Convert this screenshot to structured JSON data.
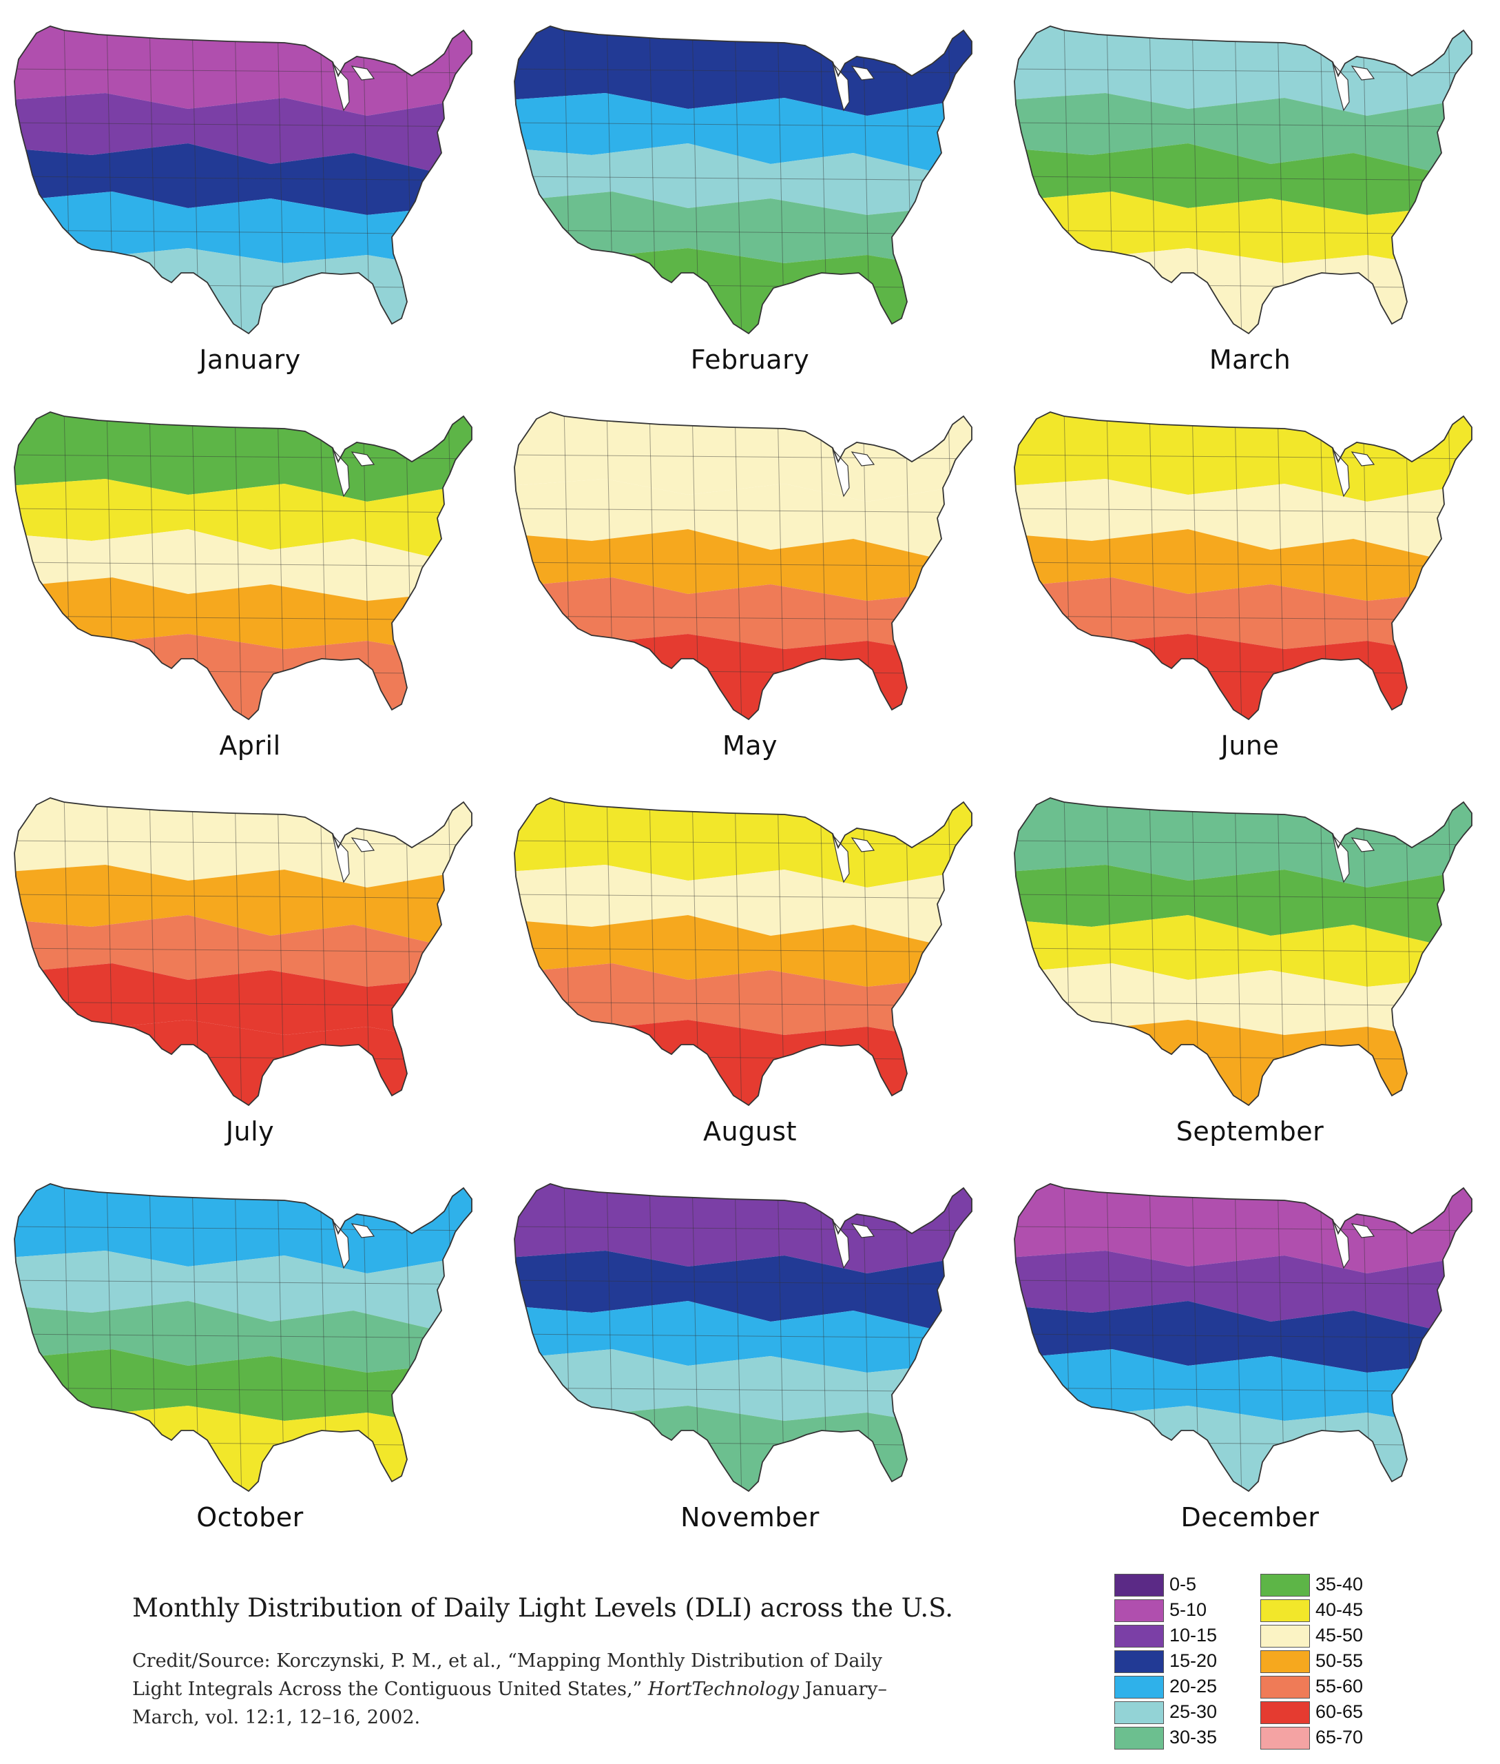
{
  "months": [
    {
      "name": "January",
      "bands": [
        1,
        2,
        3,
        4,
        5
      ]
    },
    {
      "name": "February",
      "bands": [
        3,
        4,
        5,
        6,
        7
      ]
    },
    {
      "name": "March",
      "bands": [
        5,
        6,
        7,
        8,
        9
      ]
    },
    {
      "name": "April",
      "bands": [
        7,
        8,
        9,
        10,
        11
      ]
    },
    {
      "name": "May",
      "bands": [
        9,
        9,
        10,
        11,
        12
      ]
    },
    {
      "name": "June",
      "bands": [
        8,
        9,
        10,
        11,
        12
      ]
    },
    {
      "name": "July",
      "bands": [
        9,
        10,
        11,
        12,
        12
      ]
    },
    {
      "name": "August",
      "bands": [
        8,
        9,
        10,
        11,
        12
      ]
    },
    {
      "name": "September",
      "bands": [
        6,
        7,
        8,
        9,
        10
      ]
    },
    {
      "name": "October",
      "bands": [
        4,
        5,
        6,
        7,
        8
      ]
    },
    {
      "name": "November",
      "bands": [
        2,
        3,
        4,
        5,
        6
      ]
    },
    {
      "name": "December",
      "bands": [
        1,
        2,
        3,
        4,
        5
      ]
    }
  ],
  "caption": {
    "title": "Monthly Distribution of Daily Light Levels (DLI) across the U.S.",
    "credit_prefix": "Credit/Source: Korczynski, P. M., et al., “Mapping Monthly Distribution of Daily Light Integrals Across the Contiguous United States,”",
    "credit_journal": "HortTechnology",
    "credit_suffix": "January–March, vol. 12:1, 12–16, 2002."
  },
  "legend": [
    {
      "label": "0-5",
      "color": "#5b2a86"
    },
    {
      "label": "5-10",
      "color": "#b04fae"
    },
    {
      "label": "10-15",
      "color": "#7b3fa6"
    },
    {
      "label": "15-20",
      "color": "#223a95"
    },
    {
      "label": "20-25",
      "color": "#2fb1ea"
    },
    {
      "label": "25-30",
      "color": "#93d3d6"
    },
    {
      "label": "30-35",
      "color": "#6cbf8f"
    },
    {
      "label": "35-40",
      "color": "#5db547"
    },
    {
      "label": "40-45",
      "color": "#f2e72a"
    },
    {
      "label": "45-50",
      "color": "#fbf3c4"
    },
    {
      "label": "50-55",
      "color": "#f6a81e"
    },
    {
      "label": "55-60",
      "color": "#ef7b57"
    },
    {
      "label": "60-65",
      "color": "#e53b30"
    },
    {
      "label": "65-70",
      "color": "#f4a3a3"
    }
  ]
}
